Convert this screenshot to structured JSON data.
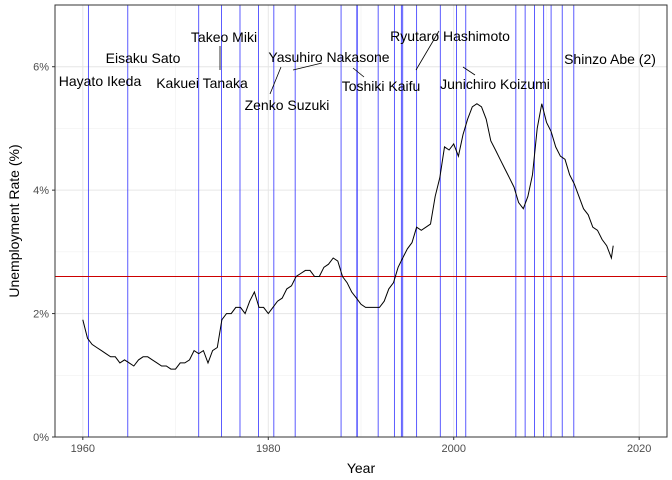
{
  "chart_data": {
    "type": "line",
    "title": "",
    "xlabel": "Year",
    "ylabel": "Unemployment Rate (%)",
    "xlim": [
      1957,
      2023
    ],
    "ylim": [
      0,
      0.07
    ],
    "grid": true,
    "legend": "none",
    "x_ticks": [
      {
        "value": 1960,
        "label": "1960"
      },
      {
        "value": 1980,
        "label": "1980"
      },
      {
        "value": 2000,
        "label": "2000"
      },
      {
        "value": 2020,
        "label": "2020"
      }
    ],
    "y_ticks": [
      {
        "value": 0,
        "label": "0%"
      },
      {
        "value": 0.02,
        "label": "2%"
      },
      {
        "value": 0.04,
        "label": "4%"
      },
      {
        "value": 0.06,
        "label": "6%"
      }
    ],
    "reference_line": {
      "y": 0.026,
      "color": "#cc0000"
    },
    "series": [
      {
        "color": "#000000",
        "x": [
          1960.0,
          1960.5,
          1961.0,
          1961.5,
          1962.0,
          1962.5,
          1963.0,
          1963.5,
          1964.0,
          1964.5,
          1965.0,
          1965.5,
          1966.0,
          1966.5,
          1967.0,
          1967.5,
          1968.0,
          1968.5,
          1969.0,
          1969.5,
          1970.0,
          1970.5,
          1971.0,
          1971.5,
          1972.0,
          1972.5,
          1973.0,
          1973.5,
          1974.0,
          1974.5,
          1975.0,
          1975.5,
          1976.0,
          1976.5,
          1977.0,
          1977.5,
          1978.0,
          1978.5,
          1979.0,
          1979.5,
          1980.0,
          1980.5,
          1981.0,
          1981.5,
          1982.0,
          1982.5,
          1983.0,
          1983.5,
          1984.0,
          1984.5,
          1985.0,
          1985.5,
          1986.0,
          1986.5,
          1987.0,
          1987.5,
          1988.0,
          1988.5,
          1989.0,
          1989.5,
          1990.0,
          1990.5,
          1991.0,
          1991.5,
          1992.0,
          1992.5,
          1993.0,
          1993.5,
          1994.0,
          1994.5,
          1995.0,
          1995.5,
          1996.0,
          1996.5,
          1997.0,
          1997.5,
          1998.0,
          1998.5,
          1999.0,
          1999.5,
          2000.0,
          2000.5,
          2001.0,
          2001.5,
          2002.0,
          2002.5,
          2003.0,
          2003.5,
          2004.0,
          2004.5,
          2005.0,
          2005.5,
          2006.0,
          2006.5,
          2007.0,
          2007.5,
          2008.0,
          2008.5,
          2009.0,
          2009.5,
          2010.0,
          2010.5,
          2011.0,
          2011.5,
          2012.0,
          2012.5,
          2013.0,
          2013.5,
          2014.0,
          2014.5,
          2015.0,
          2015.5,
          2016.0,
          2016.5,
          2017.0,
          2017.2
        ],
        "values": [
          0.019,
          0.016,
          0.015,
          0.0145,
          0.014,
          0.0135,
          0.013,
          0.013,
          0.012,
          0.0125,
          0.012,
          0.0115,
          0.0125,
          0.013,
          0.013,
          0.0125,
          0.012,
          0.0115,
          0.0115,
          0.011,
          0.011,
          0.012,
          0.012,
          0.0125,
          0.014,
          0.0135,
          0.014,
          0.012,
          0.014,
          0.0145,
          0.019,
          0.02,
          0.02,
          0.021,
          0.021,
          0.02,
          0.022,
          0.0235,
          0.021,
          0.021,
          0.02,
          0.021,
          0.022,
          0.0225,
          0.024,
          0.0245,
          0.026,
          0.0265,
          0.027,
          0.027,
          0.026,
          0.026,
          0.0275,
          0.028,
          0.029,
          0.0285,
          0.026,
          0.025,
          0.0235,
          0.0225,
          0.0215,
          0.021,
          0.021,
          0.021,
          0.021,
          0.022,
          0.024,
          0.025,
          0.0275,
          0.029,
          0.0305,
          0.0315,
          0.034,
          0.0335,
          0.034,
          0.0345,
          0.039,
          0.042,
          0.047,
          0.0465,
          0.0475,
          0.0455,
          0.049,
          0.0515,
          0.0535,
          0.054,
          0.0535,
          0.0515,
          0.048,
          0.0465,
          0.045,
          0.0435,
          0.042,
          0.0405,
          0.038,
          0.037,
          0.039,
          0.0425,
          0.05,
          0.054,
          0.051,
          0.0495,
          0.047,
          0.0455,
          0.045,
          0.0425,
          0.041,
          0.039,
          0.037,
          0.036,
          0.034,
          0.0335,
          0.032,
          0.031,
          0.029,
          0.031
        ]
      }
    ],
    "vertical_lines": {
      "color": "#3333ff",
      "x": [
        1960.6,
        1964.85,
        1972.5,
        1974.95,
        1976.95,
        1978.95,
        1980.6,
        1982.9,
        1987.85,
        1989.55,
        1989.6,
        1991.85,
        1993.6,
        1994.35,
        1994.5,
        1996.0,
        1998.55,
        2000.3,
        2001.3,
        2006.7,
        2007.7,
        2008.7,
        2009.7,
        2010.5,
        2011.7,
        2012.95
      ]
    },
    "annotations": [
      {
        "text": "Hayato Ikeda"
      },
      {
        "text": "Eisaku Sato"
      },
      {
        "text": "Kakuei Tanaka"
      },
      {
        "text": "Takeo Miki"
      },
      {
        "text": "Zenko Suzuki"
      },
      {
        "text": "Yasuhiro Nakasone"
      },
      {
        "text": "Toshiki Kaifu"
      },
      {
        "text": "Ryutaro Hashimoto"
      },
      {
        "text": "Junichiro Koizumi"
      },
      {
        "text": "Shinzo Abe (2)"
      }
    ]
  }
}
